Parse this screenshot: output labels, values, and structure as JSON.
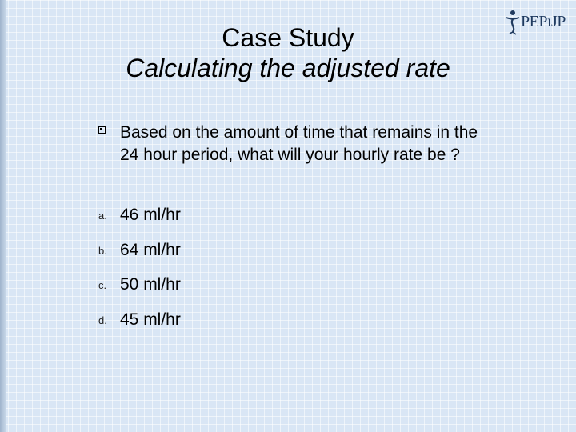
{
  "slide": {
    "title_line1": "Case Study",
    "title_line2": "Calculating the adjusted rate",
    "logo_text": "PEPıJP",
    "question": "Based on the amount of time that remains in the 24 hour period, what will your hourly rate be ?",
    "options": [
      {
        "letter": "a.",
        "text": "46 ml/hr"
      },
      {
        "letter": "b.",
        "text": "64 ml/hr"
      },
      {
        "letter": "c.",
        "text": "50 ml/hr"
      },
      {
        "letter": "d.",
        "text": "45 ml/hr"
      }
    ]
  },
  "colors": {
    "background": "#d9e6f5",
    "logo": "#1f3a5f",
    "text": "#000000"
  }
}
